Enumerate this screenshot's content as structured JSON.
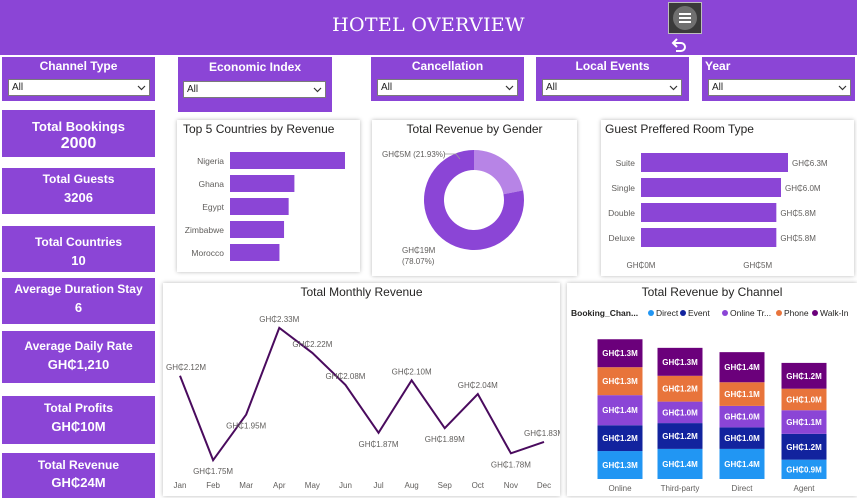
{
  "header": {
    "title": "HOTEL OVERVIEW",
    "menu_icon": "hamburger-icon",
    "undo_icon": "undo-arrow-icon"
  },
  "slicers": [
    {
      "label": "Channel Type",
      "value": "All"
    },
    {
      "label": "Economic Index",
      "value": "All"
    },
    {
      "label": "Cancellation",
      "value": "All"
    },
    {
      "label": "Local Events",
      "value": "All"
    },
    {
      "label": "Year",
      "value": "All"
    }
  ],
  "kpis": [
    {
      "label": "Total Bookings",
      "value": "2000"
    },
    {
      "label": "Total Guests",
      "value": "3206"
    },
    {
      "label": "Total Countries",
      "value": "10"
    },
    {
      "label": "Average Duration Stay",
      "value": "6"
    },
    {
      "label": "Average Daily Rate",
      "value": "GH₵1,210"
    },
    {
      "label": "Total Profits",
      "value": "GH₵10M"
    },
    {
      "label": "Total Revenue",
      "value": "GH₵24M"
    }
  ],
  "colors": {
    "purple": "#8b45d6",
    "bar": "#8b45d6",
    "donut_light": "#b784e6",
    "line": "#4a0b5e",
    "direct": "#2196f3",
    "event": "#12239e",
    "online": "#8b45d6",
    "phone": "#e8743b",
    "walkin": "#6b007b"
  },
  "chart_data": [
    {
      "type": "bar",
      "title": "Top 5 Countries by Revenue",
      "orientation": "horizontal",
      "categories": [
        "Nigeria",
        "Ghana",
        "Egypt",
        "Zimbabwe",
        "Morocco"
      ],
      "values": [
        100,
        56,
        51,
        47,
        43
      ]
    },
    {
      "type": "pie",
      "title": "Total Revenue by Gender",
      "donut": true,
      "slices": [
        {
          "label": "GH₵5M (21.93%)",
          "value": 21.93
        },
        {
          "label": "GH₵19M (78.07%)",
          "value": 78.07
        }
      ]
    },
    {
      "type": "bar",
      "title": "Guest Preffered Room Type",
      "orientation": "horizontal",
      "categories": [
        "Suite",
        "Single",
        "Double",
        "Deluxe"
      ],
      "values": [
        6.3,
        6.0,
        5.8,
        5.8
      ],
      "value_labels": [
        "GH₵6.3M",
        "GH₵6.0M",
        "GH₵5.8M",
        "GH₵5.8M"
      ],
      "x_ticks": [
        "GH₵0M",
        "GH₵5M"
      ],
      "xlim": [
        0,
        8
      ]
    },
    {
      "type": "line",
      "title": "Total Monthly Revenue",
      "categories": [
        "Jan",
        "Feb",
        "Mar",
        "Apr",
        "May",
        "Jun",
        "Jul",
        "Aug",
        "Sep",
        "Oct",
        "Nov",
        "Dec"
      ],
      "values": [
        2.12,
        1.75,
        1.95,
        2.33,
        2.22,
        2.08,
        1.87,
        2.1,
        1.89,
        2.04,
        1.78,
        1.83
      ],
      "value_labels": [
        "GH₵2.12M",
        "GH₵1.75M",
        "GH₵1.95M",
        "GH₵2.33M",
        "GH₵2.22M",
        "GH₵2.08M",
        "GH₵1.87M",
        "GH₵2.10M",
        "GH₵1.89M",
        "GH₵2.04M",
        "GH₵1.78M",
        "GH₵1.83M"
      ],
      "ylim": [
        1.72,
        2.36
      ]
    },
    {
      "type": "bar",
      "stacked": true,
      "title": "Total Revenue by Channel",
      "legend_title": "Booking_Chan...",
      "legend": [
        "Direct",
        "Event",
        "Online Tr...",
        "Phone",
        "Walk-In"
      ],
      "categories": [
        "Online",
        "Third-party",
        "Direct",
        "Agent"
      ],
      "series": [
        {
          "name": "Direct",
          "values": [
            1.3,
            1.4,
            1.4,
            0.9
          ],
          "labels": [
            "GH₵1.3M",
            "GH₵1.4M",
            "GH₵1.4M",
            "GH₵0.9M"
          ]
        },
        {
          "name": "Event",
          "values": [
            1.2,
            1.2,
            1.0,
            1.2
          ],
          "labels": [
            "GH₵1.2M",
            "GH₵1.2M",
            "GH₵1.0M",
            "GH₵1.2M"
          ]
        },
        {
          "name": "Online Tr...",
          "values": [
            1.4,
            1.0,
            1.0,
            1.1
          ],
          "labels": [
            "GH₵1.4M",
            "GH₵1.0M",
            "GH₵1.0M",
            "GH₵1.1M"
          ]
        },
        {
          "name": "Phone",
          "values": [
            1.3,
            1.2,
            1.1,
            1.0
          ],
          "labels": [
            "GH₵1.3M",
            "GH₵1.2M",
            "GH₵1.1M",
            "GH₵1.0M"
          ]
        },
        {
          "name": "Walk-In",
          "values": [
            1.3,
            1.3,
            1.4,
            1.2
          ],
          "labels": [
            "GH₵1.3M",
            "GH₵1.3M",
            "GH₵1.4M",
            "GH₵1.2M"
          ]
        }
      ]
    }
  ]
}
